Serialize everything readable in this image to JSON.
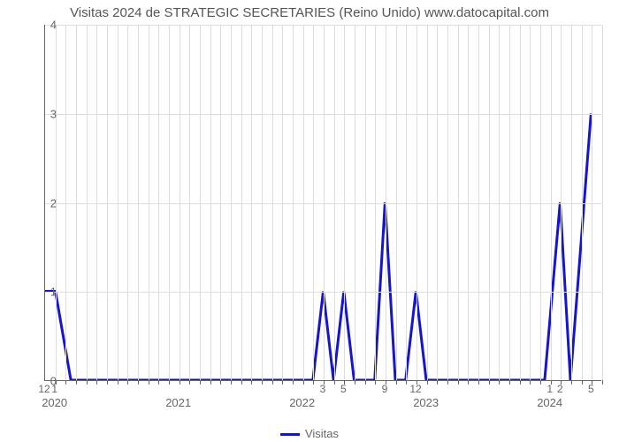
{
  "chart": {
    "type": "line",
    "title": "Visitas 2024 de STRATEGIC SECRETARIES (Reino Unido) www.datocapital.com",
    "title_fontsize": 15,
    "title_color": "#555555",
    "background_color": "#ffffff",
    "plot_border_color": "#666666",
    "grid_color": "#dddddd",
    "line_color": "#1414d2",
    "line_width": 3,
    "ylim": [
      0,
      4
    ],
    "ytick_step": 1,
    "y_ticks": [
      0,
      1,
      2,
      3,
      4
    ],
    "x_domain_months": 53,
    "year_labels": [
      {
        "label": "2020",
        "month_index": 0
      },
      {
        "label": "2021",
        "month_index": 12
      },
      {
        "label": "2022",
        "month_index": 24
      },
      {
        "label": "2023",
        "month_index": 36
      },
      {
        "label": "2024",
        "month_index": 48
      }
    ],
    "minor_x_labels": [
      {
        "label": "12",
        "month_index": -1
      },
      {
        "label": "1",
        "month_index": 0
      },
      {
        "label": "3",
        "month_index": 26
      },
      {
        "label": "5",
        "month_index": 28
      },
      {
        "label": "9",
        "month_index": 32
      },
      {
        "label": "12",
        "month_index": 35
      },
      {
        "label": "1",
        "month_index": 48
      },
      {
        "label": "2",
        "month_index": 49
      },
      {
        "label": "5",
        "month_index": 52
      }
    ],
    "series": {
      "name": "Visitas",
      "points": [
        [
          -1,
          1
        ],
        [
          0,
          1
        ],
        [
          1.5,
          0
        ],
        [
          25,
          0
        ],
        [
          26,
          1
        ],
        [
          27,
          0
        ],
        [
          28,
          1
        ],
        [
          29,
          0
        ],
        [
          31,
          0
        ],
        [
          32,
          2
        ],
        [
          33,
          0
        ],
        [
          34,
          0
        ],
        [
          35,
          1
        ],
        [
          36,
          0
        ],
        [
          47.5,
          0
        ],
        [
          49,
          2
        ],
        [
          50,
          0
        ],
        [
          52,
          3
        ]
      ]
    },
    "legend_label": "Visitas"
  }
}
